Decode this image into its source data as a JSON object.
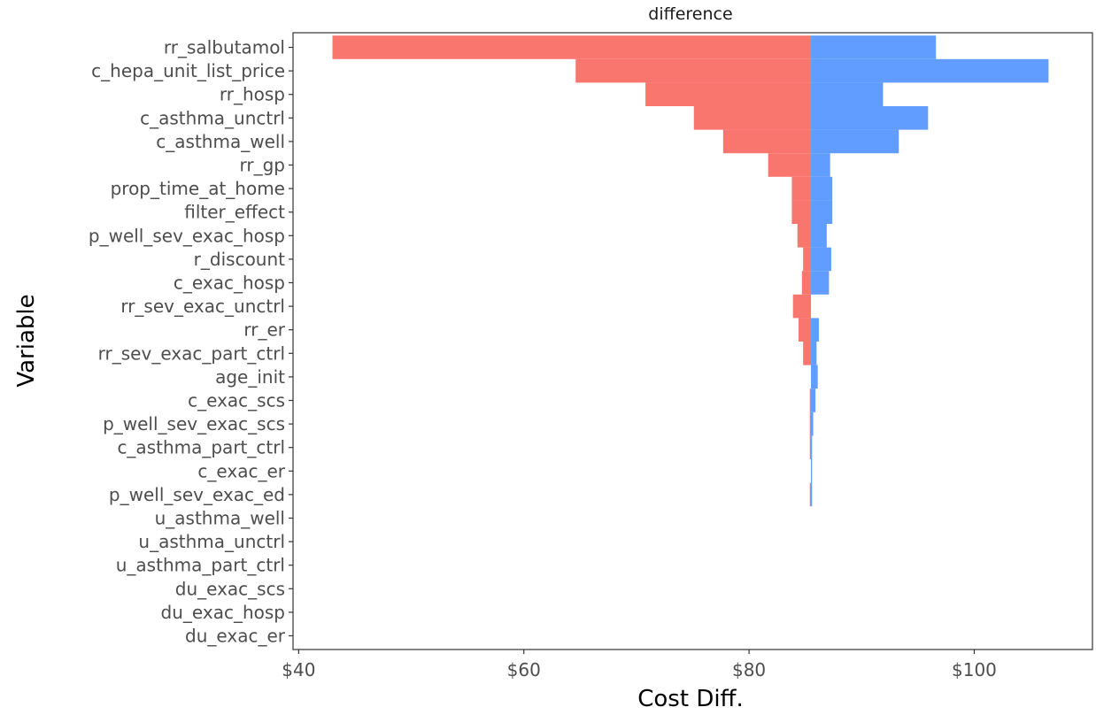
{
  "chart_data": {
    "type": "bar",
    "subtype": "tornado",
    "title": "",
    "facet_label": "difference",
    "xlabel": "Cost Diff.",
    "ylabel": "Variable",
    "xlim": [
      39.5,
      110.5
    ],
    "x_ticks": [
      40,
      60,
      80,
      100
    ],
    "x_tick_labels": [
      "$40",
      "$60",
      "$80",
      "$100"
    ],
    "base_value": 85.5,
    "grid": false,
    "legend": "none",
    "colors": {
      "low": "#F8766D",
      "high": "#619CFF"
    },
    "categories": [
      "rr_salbutamol",
      "c_hepa_unit_list_price",
      "rr_hosp",
      "c_asthma_unctrl",
      "c_asthma_well",
      "rr_gp",
      "prop_time_at_home",
      "filter_effect",
      "p_well_sev_exac_hosp",
      "r_discount",
      "c_exac_hosp",
      "rr_sev_exac_unctrl",
      "rr_er",
      "rr_sev_exac_part_ctrl",
      "age_init",
      "c_exac_scs",
      "p_well_sev_exac_scs",
      "c_asthma_part_ctrl",
      "c_exac_er",
      "p_well_sev_exac_ed",
      "u_asthma_well",
      "u_asthma_unctrl",
      "u_asthma_part_ctrl",
      "du_exac_scs",
      "du_exac_hosp",
      "du_exac_er"
    ],
    "series": [
      {
        "values": [
          43.0,
          64.6,
          70.8,
          75.1,
          77.7,
          81.7,
          83.8,
          83.8,
          84.3,
          84.8,
          84.7,
          83.9,
          84.4,
          84.8,
          85.5,
          85.4,
          85.4,
          85.4,
          85.5,
          85.4,
          85.5,
          85.5,
          85.5,
          85.5,
          85.5,
          85.5
        ]
      },
      {
        "values": [
          96.6,
          106.6,
          91.9,
          95.9,
          93.3,
          87.2,
          87.4,
          87.4,
          86.9,
          87.3,
          87.1,
          85.5,
          86.2,
          86.0,
          86.1,
          85.9,
          85.7,
          85.6,
          85.6,
          85.6,
          85.5,
          85.5,
          85.5,
          85.5,
          85.5,
          85.5
        ]
      }
    ]
  }
}
